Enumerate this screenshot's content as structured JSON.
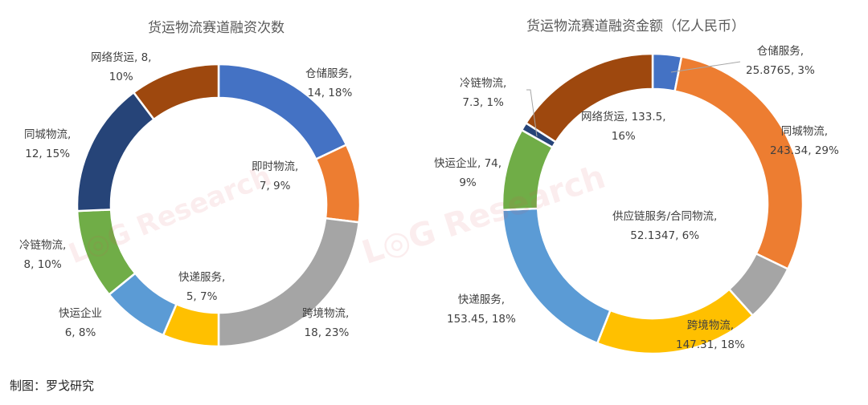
{
  "chart_data": [
    {
      "type": "pie",
      "subtype": "donut",
      "title": "货运物流赛道融资次数",
      "categories": [
        "仓储服务",
        "即时物流",
        "跨境物流",
        "快递服务",
        "快运企业",
        "冷链物流",
        "同城物流",
        "网络货运"
      ],
      "values": [
        14,
        7,
        18,
        5,
        6,
        8,
        12,
        8
      ],
      "percentages": [
        18,
        9,
        23,
        7,
        8,
        10,
        15,
        10
      ],
      "colors": [
        "#4472C4",
        "#ED7D31",
        "#A5A5A5",
        "#FFC000",
        "#5B9BD5",
        "#70AD47",
        "#264478",
        "#9E480E"
      ],
      "labels": [
        {
          "line1": "仓储服务,",
          "line2": "14, 18%"
        },
        {
          "line1": "即时物流,",
          "line2": "7, 9%"
        },
        {
          "line1": "跨境物流,",
          "line2": "18, 23%"
        },
        {
          "line1": "快递服务,",
          "line2": "5, 7%"
        },
        {
          "line1": "快运企业",
          "line2": "6, 8%"
        },
        {
          "line1": "冷链物流,",
          "line2": "8, 10%"
        },
        {
          "line1": "同城物流,",
          "line2": "12, 15%"
        },
        {
          "line1": "网络货运, 8,",
          "line2": "10%"
        }
      ],
      "start_angle_deg": 0,
      "direction": "clockwise",
      "legend": "none"
    },
    {
      "type": "pie",
      "subtype": "donut",
      "title": "货运物流赛道融资金额（亿人民币）",
      "categories": [
        "仓储服务",
        "同城物流",
        "供应链服务/合同物流",
        "跨境物流",
        "快递服务",
        "快运企业",
        "冷链物流",
        "网络货运"
      ],
      "values": [
        25.8765,
        243.34,
        52.1347,
        147.31,
        153.45,
        74,
        7.3,
        133.5
      ],
      "percentages": [
        3,
        29,
        6,
        18,
        18,
        9,
        1,
        16
      ],
      "colors": [
        "#4472C4",
        "#ED7D31",
        "#A5A5A5",
        "#FFC000",
        "#5B9BD5",
        "#70AD47",
        "#264478",
        "#9E480E"
      ],
      "labels": [
        {
          "line1": "仓储服务,",
          "line2": "25.8765, 3%"
        },
        {
          "line1": "同城物流,",
          "line2": "243.34, 29%"
        },
        {
          "line1": "供应链服务/合同物流,",
          "line2": "52.1347, 6%"
        },
        {
          "line1": "跨境物流,",
          "line2": "147.31, 18%"
        },
        {
          "line1": "快递服务,",
          "line2": "153.45, 18%"
        },
        {
          "line1": "快运企业, 74,",
          "line2": "9%"
        },
        {
          "line1": "冷链物流,",
          "line2": "7.3, 1%"
        },
        {
          "line1": "网络货运, 133.5,",
          "line2": "16%"
        }
      ],
      "unit": "亿人民币",
      "start_angle_deg": 0,
      "direction": "clockwise",
      "legend": "none"
    }
  ],
  "credit": "制图：罗戈研究",
  "watermark": {
    "left": "L◎G Research",
    "right": "L◎G Research"
  }
}
